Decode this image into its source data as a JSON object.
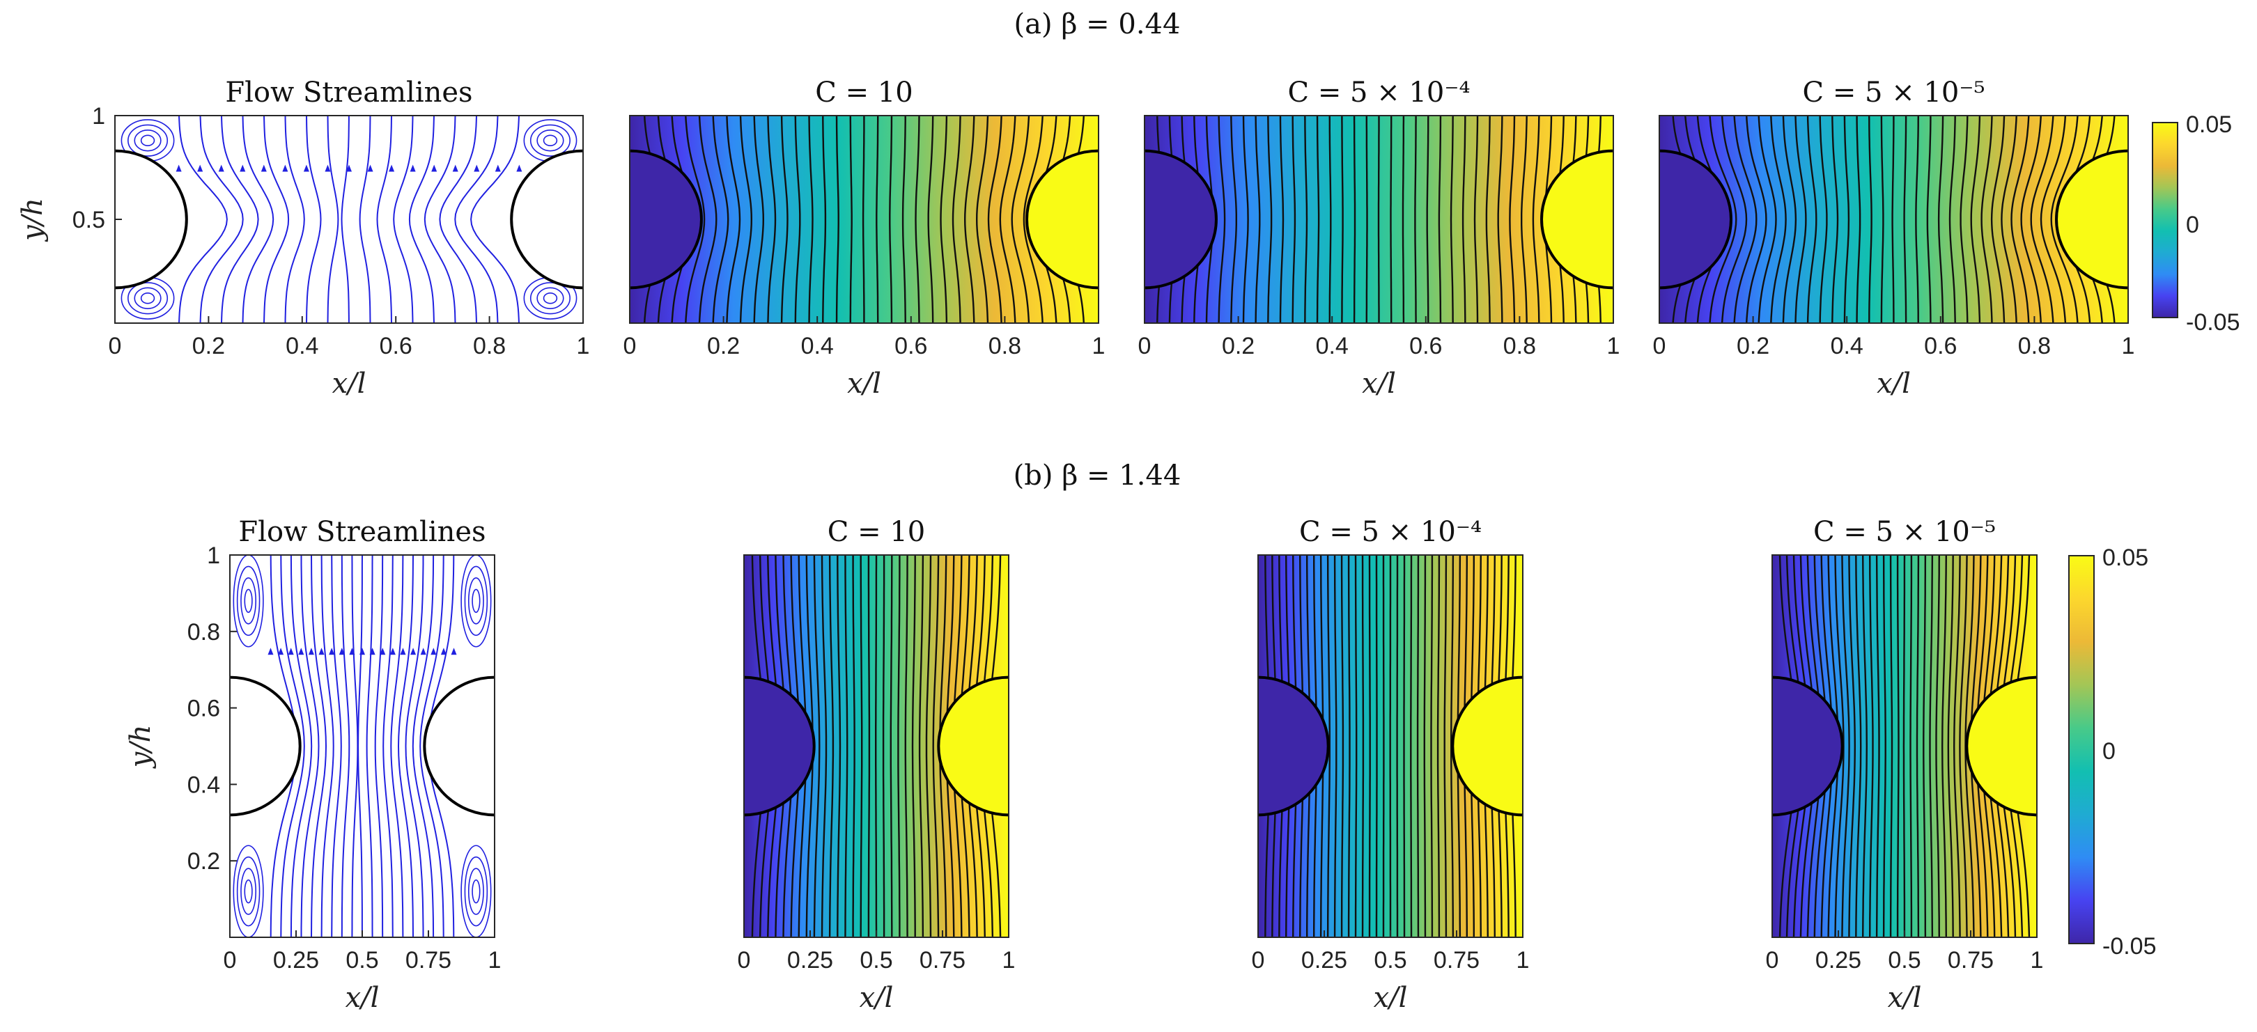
{
  "figure": {
    "row_a_title": "(a) β = 0.44",
    "row_b_title": "(b) β = 1.44"
  },
  "colorbar": {
    "ticks": [
      "0.05",
      "0",
      "-0.05"
    ],
    "range": [
      -0.05,
      0.05
    ],
    "colormap": "parula",
    "colors": [
      "#3e26a8",
      "#4743f1",
      "#2f8cf4",
      "#1fabd2",
      "#12bfb1",
      "#48ca89",
      "#a3c656",
      "#ecb937",
      "#fcd72d",
      "#f9fb15"
    ]
  },
  "chart_data": [
    {
      "type": "streamline",
      "panel": "a1",
      "title": "Flow Streamlines",
      "xlabel": "x/l",
      "ylabel": "y/h",
      "xlim": [
        0,
        1
      ],
      "ylim": [
        0,
        1
      ],
      "xticks": [
        "0",
        "0.2",
        "0.4",
        "0.6",
        "0.8",
        "1"
      ],
      "yticks": [
        "1",
        "0.5"
      ],
      "obstacles": [
        {
          "cx": 0,
          "cy": 0.5,
          "r": 0.33
        },
        {
          "cx": 1,
          "cy": 0.5,
          "r": 0.33
        }
      ],
      "line_color": "#2020e0"
    },
    {
      "type": "contour",
      "panel": "a2",
      "title": "C = 10",
      "xlabel": "x/l",
      "xlim": [
        0,
        1
      ],
      "xticks": [
        "0",
        "0.2",
        "0.4",
        "0.6",
        "0.8",
        "1"
      ],
      "value_range": [
        -0.05,
        0.05
      ]
    },
    {
      "type": "contour",
      "panel": "a3",
      "title": "C = 5 × 10⁻⁴",
      "xlabel": "x/l",
      "xlim": [
        0,
        1
      ],
      "xticks": [
        "0",
        "0.2",
        "0.4",
        "0.6",
        "0.8",
        "1"
      ],
      "value_range": [
        -0.05,
        0.05
      ]
    },
    {
      "type": "contour",
      "panel": "a4",
      "title": "C = 5 × 10⁻⁵",
      "xlabel": "x/l",
      "xlim": [
        0,
        1
      ],
      "xticks": [
        "0",
        "0.2",
        "0.4",
        "0.6",
        "0.8",
        "1"
      ],
      "value_range": [
        -0.05,
        0.05
      ]
    },
    {
      "type": "streamline",
      "panel": "b1",
      "title": "Flow Streamlines",
      "xlabel": "x/l",
      "ylabel": "y/h",
      "xlim": [
        0,
        1
      ],
      "ylim": [
        0,
        1
      ],
      "xticks": [
        "0",
        "0.25",
        "0.5",
        "0.75",
        "1"
      ],
      "yticks": [
        "1",
        "0.8",
        "0.6",
        "0.4",
        "0.2"
      ],
      "obstacles": [
        {
          "cx": 0,
          "cy": 0.5,
          "r": 0.18
        },
        {
          "cx": 1,
          "cy": 0.5,
          "r": 0.18
        }
      ],
      "line_color": "#2020e0"
    },
    {
      "type": "contour",
      "panel": "b2",
      "title": "C = 10",
      "xlabel": "x/l",
      "xlim": [
        0,
        1
      ],
      "xticks": [
        "0",
        "0.25",
        "0.5",
        "0.75",
        "1"
      ],
      "value_range": [
        -0.05,
        0.05
      ]
    },
    {
      "type": "contour",
      "panel": "b3",
      "title": "C = 5 × 10⁻⁴",
      "xlabel": "x/l",
      "xlim": [
        0,
        1
      ],
      "xticks": [
        "0",
        "0.25",
        "0.5",
        "0.75",
        "1"
      ],
      "value_range": [
        -0.05,
        0.05
      ]
    },
    {
      "type": "contour",
      "panel": "b4",
      "title": "C = 5 × 10⁻⁵",
      "xlabel": "x/l",
      "xlim": [
        0,
        1
      ],
      "xticks": [
        "0",
        "0.25",
        "0.5",
        "0.75",
        "1"
      ],
      "value_range": [
        -0.05,
        0.05
      ]
    }
  ]
}
